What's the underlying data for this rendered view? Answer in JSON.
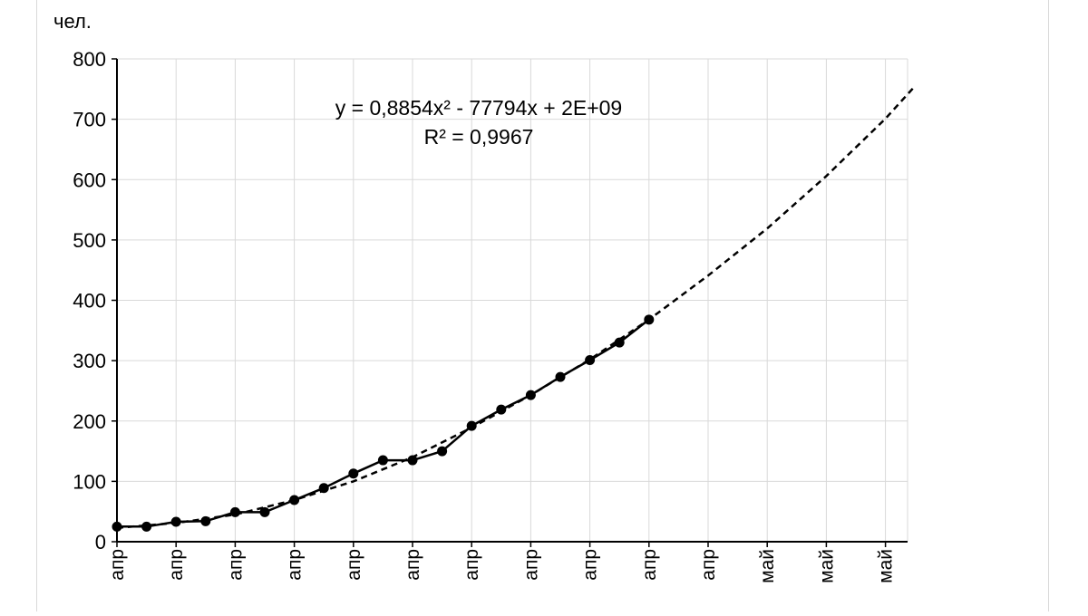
{
  "chart_data": {
    "type": "line",
    "ylabel": "чел.",
    "ylim": [
      0,
      800
    ],
    "yticks": [
      0,
      100,
      200,
      300,
      400,
      500,
      600,
      700,
      800
    ],
    "x_tick_labels": [
      "апр",
      "апр",
      "апр",
      "апр",
      "апр",
      "апр",
      "апр",
      "апр",
      "апр",
      "апр",
      "апр",
      "май",
      "май",
      "май"
    ],
    "grid": true,
    "series": [
      {
        "style": "solid-with-markers",
        "x": [
          0,
          0.5,
          1,
          1.5,
          2,
          2.5,
          3,
          3.5,
          4,
          4.5,
          5,
          5.5,
          6,
          6.5,
          7,
          7.5,
          8,
          8.5,
          9
        ],
        "y": [
          25,
          25,
          33,
          34,
          49,
          49,
          69,
          89,
          113,
          135,
          135,
          150,
          192,
          219,
          243,
          273,
          301,
          330,
          368
        ]
      },
      {
        "style": "dashed-trend",
        "x": [
          0,
          1,
          2,
          3,
          4,
          5,
          6,
          7,
          8,
          9,
          10,
          11,
          12,
          13,
          13.5
        ],
        "y": [
          23,
          31,
          45,
          69,
          100,
          140,
          189,
          243,
          302,
          368,
          441,
          519,
          606,
          701,
          755
        ]
      }
    ],
    "annotations": {
      "equation": "y = 0,8854x² - 77794x + 2E+09",
      "r_squared": "R² = 0,9967"
    },
    "colors": {
      "line": "#000000",
      "grid": "#d9d9d9"
    }
  }
}
